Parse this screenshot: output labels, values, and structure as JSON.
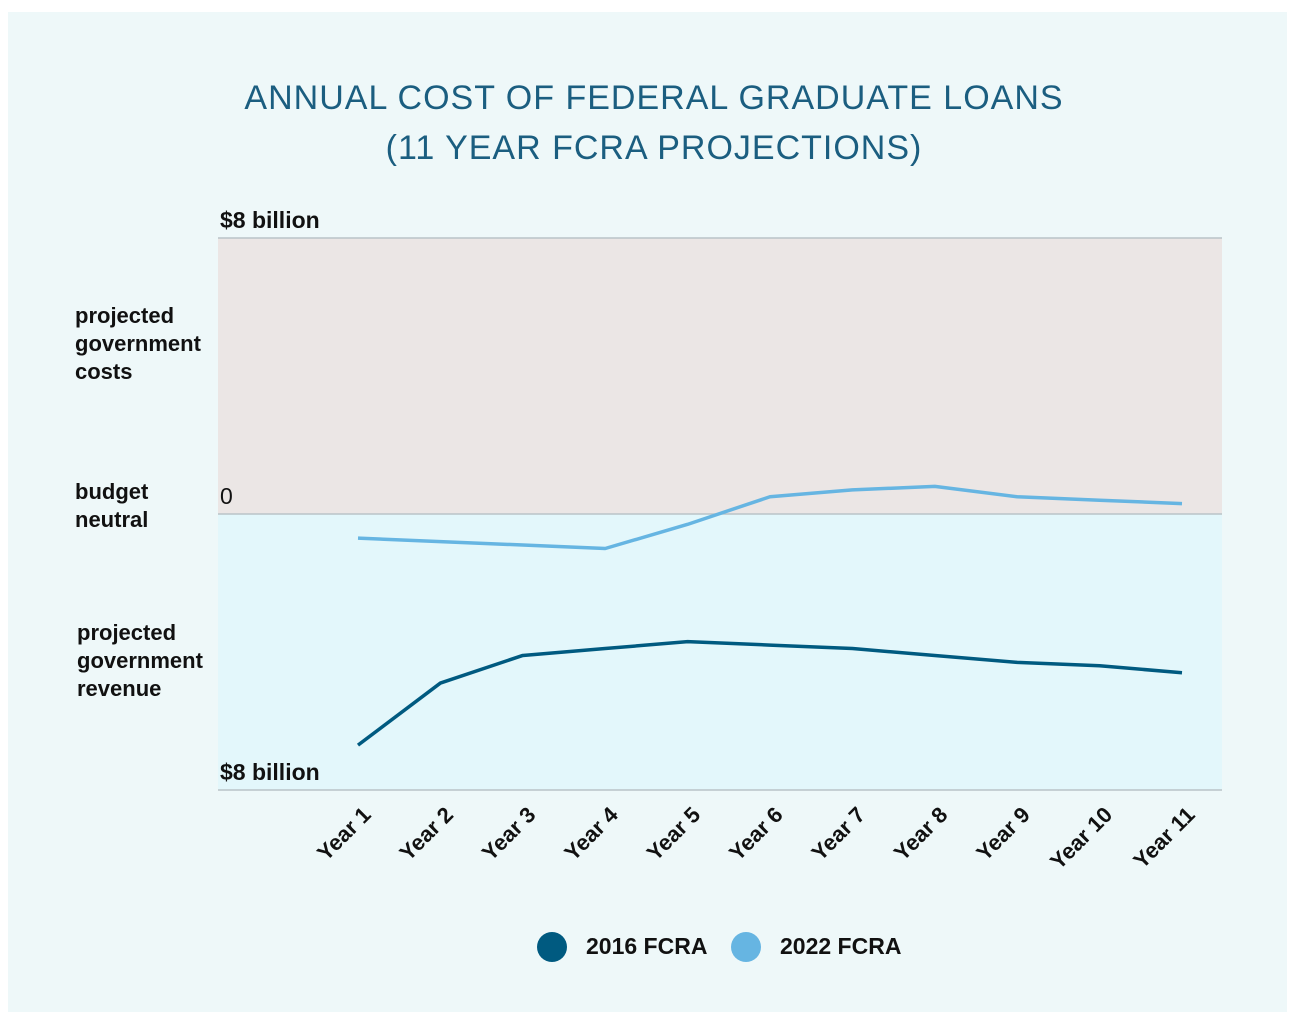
{
  "chart_data": {
    "type": "line",
    "title": "ANNUAL COST OF FEDERAL GRADUATE LOANS",
    "subtitle": "(11 YEAR FCRA PROJECTIONS)",
    "annotations": [
      [
        "projected",
        "government",
        "costs"
      ],
      [
        "budget",
        "neutral"
      ],
      [
        "projected",
        "government",
        "revenue"
      ]
    ],
    "categories": [
      "Year 1",
      "Year 2",
      "Year 3",
      "Year 4",
      "Year 5",
      "Year 6",
      "Year 7",
      "Year 8",
      "Year 9",
      "Year 10",
      "Year 11"
    ],
    "series": [
      {
        "name": "2016 FCRA",
        "color": "#005a80",
        "values": [
          -6.7,
          -4.9,
          -4.1,
          -3.9,
          -3.7,
          -3.8,
          -3.9,
          -4.1,
          -4.3,
          -4.4,
          -4.6
        ]
      },
      {
        "name": "2022 FCRA",
        "color": "#66b5e2",
        "values": [
          -0.7,
          -0.8,
          -0.9,
          -1.0,
          -0.3,
          0.5,
          0.7,
          0.8,
          0.5,
          0.4,
          0.3
        ]
      }
    ],
    "ylim": [
      -8,
      8
    ],
    "yticks": [
      {
        "value": -8,
        "label": "$8 billion"
      },
      0,
      {
        "value": 8,
        "label": "$8 billion"
      }
    ],
    "grid": true,
    "legend": "bottom"
  }
}
